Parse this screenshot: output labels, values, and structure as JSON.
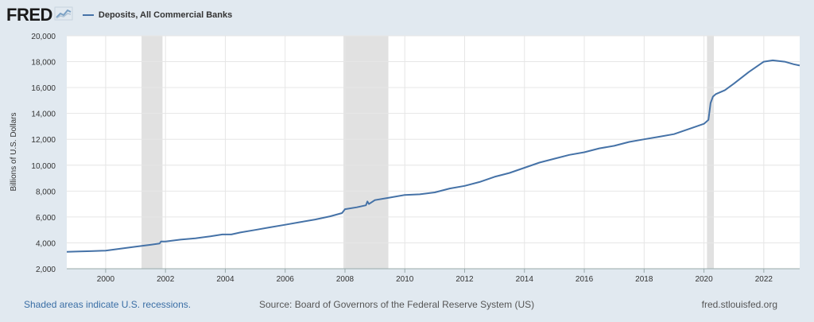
{
  "header": {
    "logo_text": "FRED",
    "logo_icon": "fred-trend-icon",
    "series_label": "Deposits, All Commercial Banks"
  },
  "colors": {
    "background": "#e1e9f0",
    "plot_background": "#ffffff",
    "series_line": "#4572a7",
    "recession_shade": "#e1e1e1",
    "grid": "#e6e6e6"
  },
  "chart_data": {
    "type": "line",
    "title": "",
    "xlabel": "",
    "ylabel": "Billions of U.S. Dollars",
    "xlim": [
      1998.7,
      2023.2
    ],
    "ylim": [
      2000,
      20000
    ],
    "x_ticks": [
      2000,
      2002,
      2004,
      2006,
      2008,
      2010,
      2012,
      2014,
      2016,
      2018,
      2020,
      2022
    ],
    "y_ticks": [
      2000,
      4000,
      6000,
      8000,
      10000,
      12000,
      14000,
      16000,
      18000,
      20000
    ],
    "y_tick_labels": [
      "2,000",
      "4,000",
      "6,000",
      "8,000",
      "10,000",
      "12,000",
      "14,000",
      "16,000",
      "18,000",
      "20,000"
    ],
    "grid": true,
    "legend_position": "top-left",
    "recessions": [
      [
        2001.2,
        2001.9
      ],
      [
        2007.95,
        2009.45
      ],
      [
        2020.1,
        2020.33
      ]
    ],
    "series": [
      {
        "name": "Deposits, All Commercial Banks",
        "x": [
          1998.7,
          1999.0,
          1999.5,
          2000.0,
          2000.5,
          2001.0,
          2001.5,
          2001.8,
          2001.85,
          2002.0,
          2002.5,
          2003.0,
          2003.5,
          2003.9,
          2004.2,
          2004.5,
          2005.0,
          2005.5,
          2006.0,
          2006.5,
          2007.0,
          2007.5,
          2007.9,
          2008.0,
          2008.4,
          2008.7,
          2008.75,
          2008.8,
          2009.0,
          2009.5,
          2010.0,
          2010.5,
          2011.0,
          2011.5,
          2012.0,
          2012.5,
          2013.0,
          2013.5,
          2014.0,
          2014.5,
          2015.0,
          2015.5,
          2016.0,
          2016.5,
          2017.0,
          2017.5,
          2018.0,
          2018.5,
          2019.0,
          2019.5,
          2020.0,
          2020.15,
          2020.22,
          2020.3,
          2020.4,
          2020.7,
          2021.0,
          2021.5,
          2022.0,
          2022.3,
          2022.7,
          2023.0,
          2023.2
        ],
        "values": [
          3300,
          3330,
          3360,
          3400,
          3550,
          3700,
          3850,
          3950,
          4100,
          4100,
          4250,
          4350,
          4500,
          4650,
          4650,
          4800,
          5000,
          5200,
          5400,
          5600,
          5800,
          6050,
          6300,
          6600,
          6750,
          6900,
          7200,
          7000,
          7300,
          7500,
          7700,
          7750,
          7900,
          8200,
          8400,
          8700,
          9100,
          9400,
          9800,
          10200,
          10500,
          10800,
          11000,
          11300,
          11500,
          11800,
          12000,
          12200,
          12400,
          12800,
          13200,
          13500,
          14800,
          15300,
          15500,
          15800,
          16300,
          17200,
          18000,
          18100,
          18000,
          17800,
          17700
        ]
      }
    ]
  },
  "footer": {
    "note": "Shaded areas indicate U.S. recessions.",
    "source": "Source: Board of Governors of the Federal Reserve System (US)",
    "site": "fred.stlouisfed.org"
  }
}
